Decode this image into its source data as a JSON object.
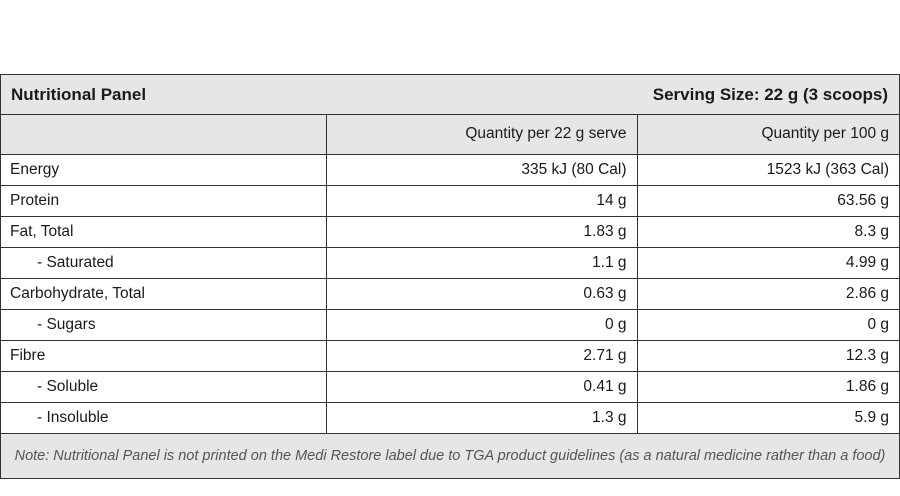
{
  "panel": {
    "title": "Nutritional Panel",
    "serving_size": "Serving Size: 22 g (3 scoops)"
  },
  "columns": {
    "blank": "",
    "per_serve": "Quantity per 22 g serve",
    "per_100g": "Quantity per 100 g"
  },
  "rows": [
    {
      "name": "Energy",
      "per_serve": "335 kJ (80 Cal)",
      "per_100g": "1523 kJ (363 Cal)"
    },
    {
      "name": "Protein",
      "per_serve": "14 g",
      "per_100g": "63.56 g"
    },
    {
      "name": "Fat, Total",
      "per_serve": "1.83 g",
      "per_100g": "8.3 g"
    },
    {
      "name": "- Saturated",
      "per_serve": "1.1 g",
      "per_100g": "4.99 g"
    },
    {
      "name": "Carbohydrate, Total",
      "per_serve": "0.63 g",
      "per_100g": "2.86 g"
    },
    {
      "name": "- Sugars",
      "per_serve": "0 g",
      "per_100g": "0 g"
    },
    {
      "name": "Fibre",
      "per_serve": "2.71 g",
      "per_100g": "12.3 g"
    },
    {
      "name": "- Soluble",
      "per_serve": "0.41 g",
      "per_100g": "1.86 g"
    },
    {
      "name": "- Insoluble",
      "per_serve": "1.3 g",
      "per_100g": "5.9 g"
    }
  ],
  "note": "Note: Nutritional Panel is not printed on the Medi Restore label due to TGA product guidelines (as a natural medicine rather than a food)",
  "colors": {
    "header_bg": "#e6e6e6",
    "border": "#333333",
    "note_text": "#555555"
  }
}
